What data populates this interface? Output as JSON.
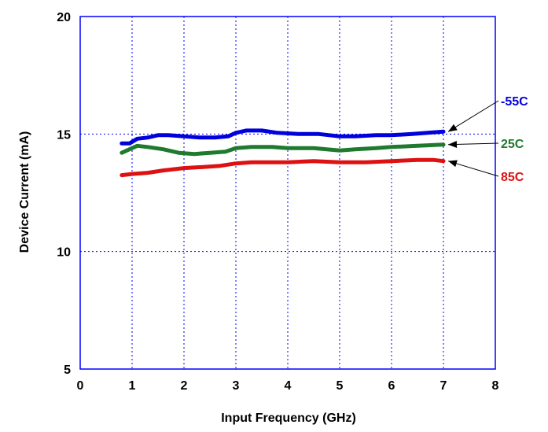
{
  "chart_data": {
    "type": "line",
    "title": "",
    "xlabel": "Input Frequency (GHz)",
    "ylabel": "Device Current (mA)",
    "xlim": [
      0,
      8
    ],
    "ylim": [
      5,
      20
    ],
    "xticks": [
      "0",
      "1",
      "2",
      "3",
      "4",
      "5",
      "6",
      "7",
      "8"
    ],
    "yticks": [
      "5",
      "10",
      "15",
      "20"
    ],
    "grid": "dotted",
    "frame_color": "#0000ff",
    "series": [
      {
        "name": "-55C",
        "color": "#0000dd",
        "x": [
          0.8,
          0.95,
          1.1,
          1.3,
          1.5,
          1.7,
          2.0,
          2.3,
          2.6,
          2.85,
          3.0,
          3.2,
          3.5,
          3.8,
          4.2,
          4.6,
          5.0,
          5.3,
          5.7,
          6.0,
          6.4,
          7.0
        ],
        "y": [
          14.6,
          14.6,
          14.8,
          14.85,
          14.95,
          14.95,
          14.9,
          14.85,
          14.85,
          14.9,
          15.05,
          15.15,
          15.15,
          15.05,
          15.0,
          15.0,
          14.9,
          14.9,
          14.95,
          14.95,
          15.0,
          15.1
        ]
      },
      {
        "name": "25C",
        "color": "#1f7a2e",
        "x": [
          0.8,
          0.95,
          1.1,
          1.3,
          1.6,
          1.9,
          2.2,
          2.5,
          2.8,
          3.0,
          3.3,
          3.7,
          4.0,
          4.5,
          5.0,
          5.3,
          5.7,
          6.0,
          6.5,
          7.0
        ],
        "y": [
          14.2,
          14.35,
          14.5,
          14.45,
          14.35,
          14.2,
          14.15,
          14.2,
          14.25,
          14.4,
          14.45,
          14.45,
          14.4,
          14.4,
          14.3,
          14.35,
          14.4,
          14.45,
          14.5,
          14.55
        ]
      },
      {
        "name": "85C",
        "color": "#dd1111",
        "x": [
          0.8,
          1.0,
          1.3,
          1.6,
          2.0,
          2.4,
          2.7,
          3.0,
          3.3,
          3.7,
          4.0,
          4.5,
          5.0,
          5.5,
          6.0,
          6.5,
          6.8,
          7.0
        ],
        "y": [
          13.25,
          13.3,
          13.35,
          13.45,
          13.55,
          13.6,
          13.65,
          13.75,
          13.8,
          13.8,
          13.8,
          13.85,
          13.8,
          13.8,
          13.85,
          13.9,
          13.9,
          13.85
        ]
      }
    ]
  }
}
